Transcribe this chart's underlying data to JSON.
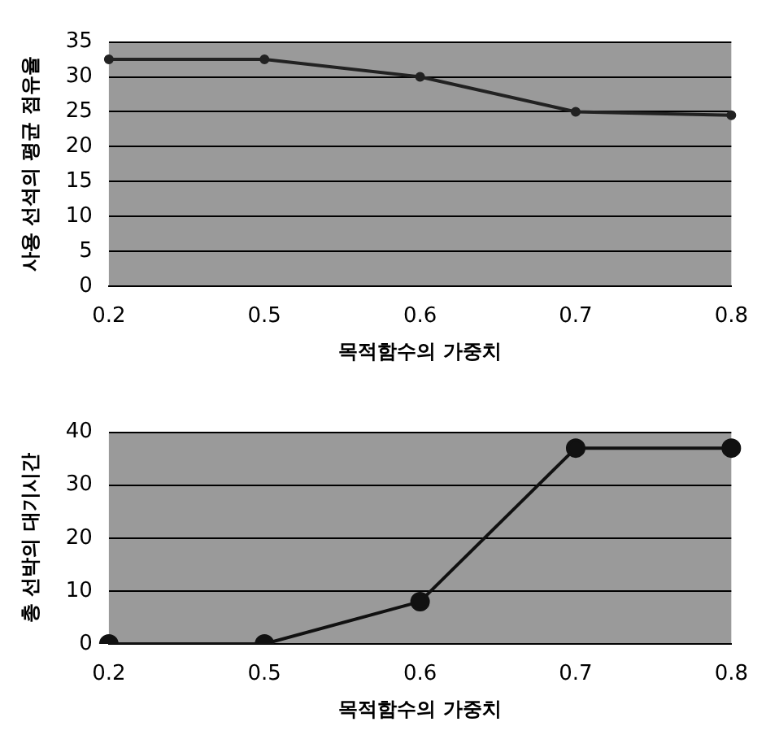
{
  "chart_data": [
    {
      "type": "line",
      "xlabel": "목적함수의 가중치",
      "ylabel": "사용 선석의 평균 점유율",
      "categories": [
        "0.2",
        "0.5",
        "0.6",
        "0.7",
        "0.8"
      ],
      "series": [
        {
          "color": "#222222",
          "values": [
            32.5,
            32.5,
            30,
            25,
            24.5
          ]
        }
      ],
      "ylim": [
        0,
        35
      ],
      "yticks": [
        0,
        5,
        10,
        15,
        20,
        25,
        30,
        35
      ],
      "grid": "y",
      "legend": false,
      "marker": "circle",
      "line_style": "solid"
    },
    {
      "type": "line",
      "xlabel": "목적함수의 가중치",
      "ylabel": "총 선박의 대기시간",
      "categories": [
        "0.2",
        "0.5",
        "0.6",
        "0.7",
        "0.8"
      ],
      "series": [
        {
          "color": "#111111",
          "values": [
            0,
            0,
            8,
            37,
            37
          ]
        }
      ],
      "ylim": [
        0,
        40
      ],
      "yticks": [
        0,
        10,
        20,
        30,
        40
      ],
      "grid": "y",
      "legend": false,
      "marker": "circle",
      "line_style": "solid"
    }
  ]
}
